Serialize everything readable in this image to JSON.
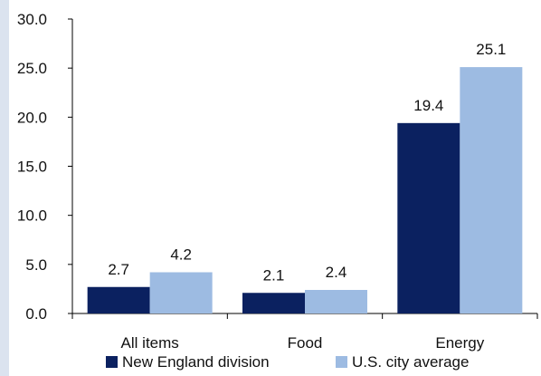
{
  "chart_data": {
    "type": "bar",
    "categories": [
      "All items",
      "Food",
      "Energy"
    ],
    "series": [
      {
        "name": "New England division",
        "values": [
          2.7,
          2.1,
          19.4
        ],
        "color": "#0b2160"
      },
      {
        "name": "U.S. city average",
        "values": [
          4.2,
          2.4,
          25.1
        ],
        "color": "#9dbbe2"
      }
    ],
    "data_labels": [
      [
        "2.7",
        "2.1",
        "19.4"
      ],
      [
        "4.2",
        "2.4",
        "25.1"
      ]
    ],
    "title": "",
    "xlabel": "",
    "ylabel": "",
    "ylim": [
      0,
      30
    ],
    "y_ticks": [
      0,
      5,
      10,
      15,
      20,
      25,
      30
    ],
    "y_tick_labels": [
      "0.0",
      "5.0",
      "10.0",
      "15.0",
      "20.0",
      "25.0",
      "30.0"
    ],
    "grid": false,
    "legend_position": "bottom"
  }
}
